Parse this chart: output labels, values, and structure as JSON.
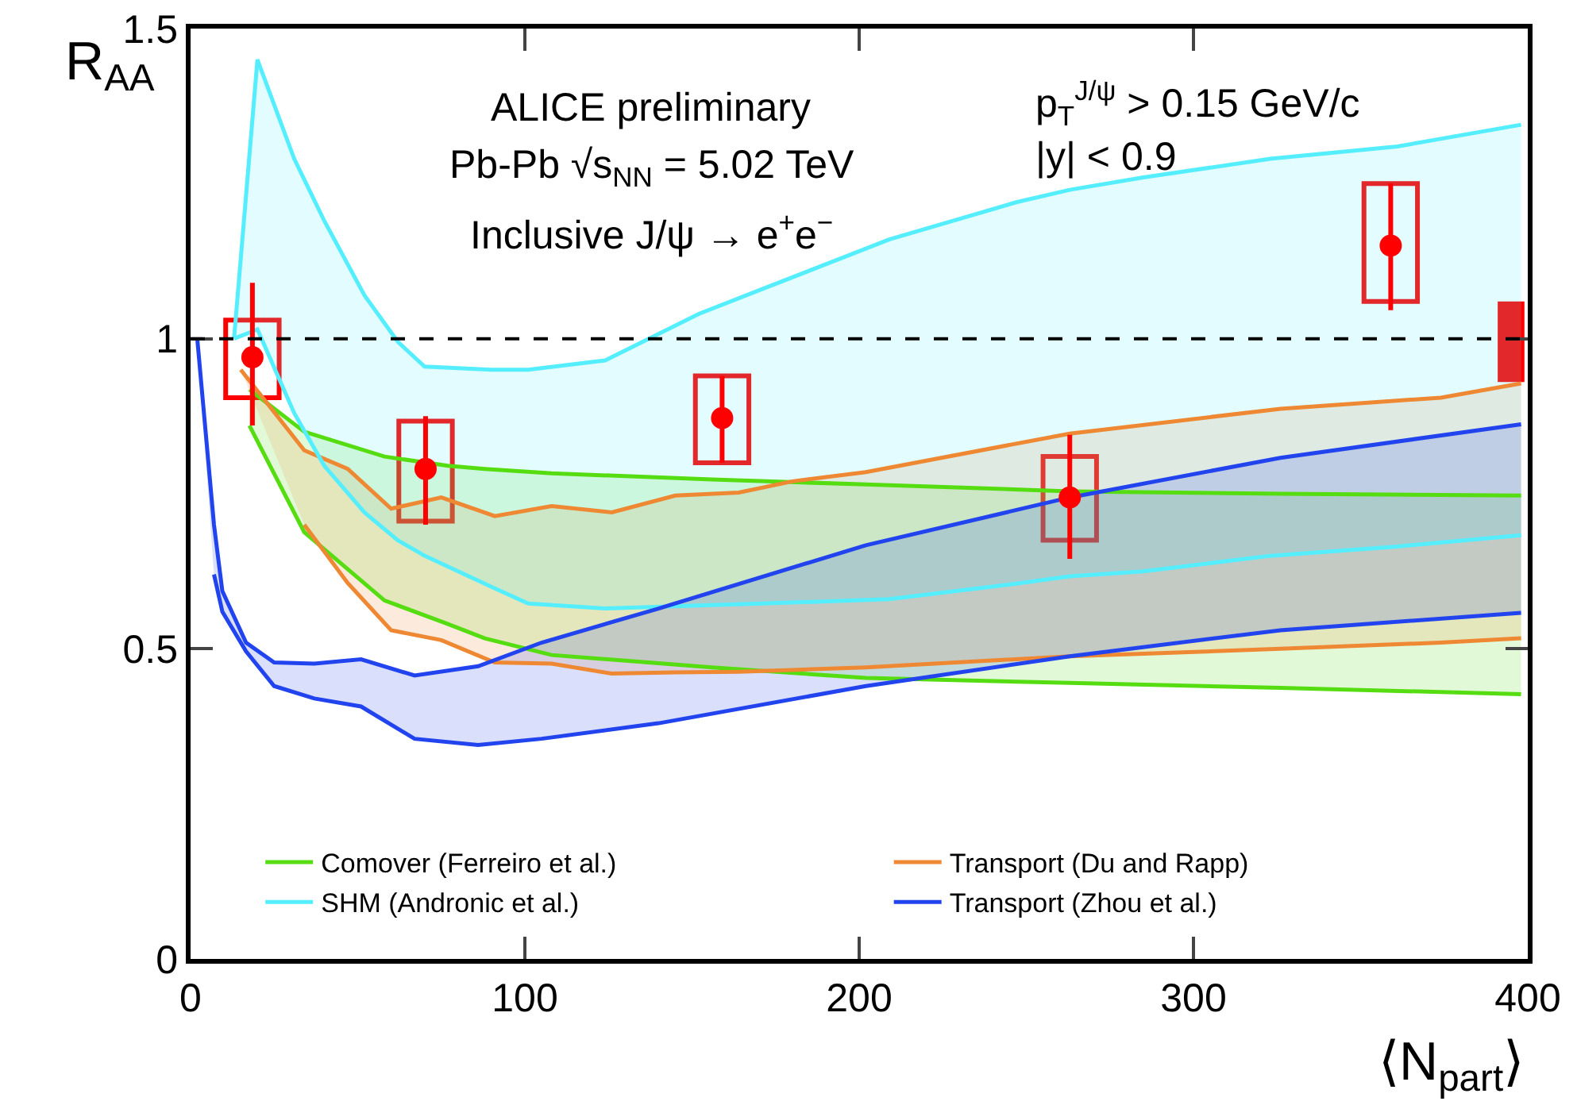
{
  "chart_data": {
    "type": "line",
    "xlabel": "⟨N$_{part}$⟩",
    "ylabel": "R$_{AA}$",
    "annotations": [
      "ALICE preliminary",
      "Pb-Pb √s$_{NN}$ = 5.02 TeV",
      "Inclusive J/ψ → e$^{+}$e$^{−}$",
      "p$_{T}$$^{J/ψ}$ > 0.15 GeV/c",
      "|y| < 0.9"
    ],
    "xlim": [
      0,
      400
    ],
    "ylim": [
      0,
      1.5
    ],
    "xticks": [
      0,
      100,
      200,
      300,
      400
    ],
    "yticks": [
      0,
      0.5,
      1,
      1.5
    ],
    "grid": false,
    "legend": "bottom",
    "ref_lines": [
      {
        "axis": "y",
        "value": 1,
        "color": "#000000",
        "line_style": "dashed"
      }
    ],
    "series": [
      {
        "color": "#55dd11",
        "x": [
          17.6,
          34,
          58,
          77,
          88,
          108,
          156,
          202,
          263,
          326,
          398
        ],
        "values": [
          0.86,
          0.688,
          0.578,
          0.54,
          0.517,
          0.49,
          0.47,
          0.453,
          0.445,
          0.437,
          0.427
        ]
      },
      {
        "type": "area",
        "name": "Comover (Ferreiro et al.)",
        "color": "#55dd11",
        "x": [
          17.6,
          34,
          58,
          77,
          88,
          108,
          156,
          202,
          263,
          326,
          398
        ],
        "values": [
          0.918,
          0.85,
          0.81,
          0.795,
          0.79,
          0.783,
          0.773,
          0.765,
          0.754,
          0.75,
          0.747
        ]
      },
      {
        "color": "#ee8833",
        "x": [
          34,
          47,
          60,
          75,
          91,
          108,
          126,
          145,
          164,
          180,
          202,
          263,
          326,
          374,
          398
        ],
        "values": [
          0.7,
          0.606,
          0.53,
          0.514,
          0.478,
          0.476,
          0.46,
          0.462,
          0.463,
          0.466,
          0.47,
          0.488,
          0.5,
          0.51,
          0.517
        ]
      },
      {
        "type": "area",
        "name": "Transport (Du and Rapp)",
        "color": "#ee8833",
        "x": [
          15,
          34,
          47,
          60,
          75,
          91,
          108,
          126,
          145,
          164,
          180,
          202,
          263,
          326,
          374,
          398
        ],
        "values": [
          0.95,
          0.82,
          0.79,
          0.726,
          0.744,
          0.714,
          0.73,
          0.72,
          0.747,
          0.752,
          0.77,
          0.785,
          0.847,
          0.887,
          0.905,
          0.928
        ]
      },
      {
        "color": "#55eeff",
        "x": [
          13,
          20,
          31,
          40,
          52,
          62,
          70,
          90,
          101,
          124,
          152,
          171,
          209,
          247,
          263,
          285,
          323,
          361,
          398
        ],
        "values": [
          1.0,
          1.015,
          0.88,
          0.795,
          0.72,
          0.675,
          0.65,
          0.6,
          0.573,
          0.565,
          0.57,
          0.573,
          0.58,
          0.605,
          0.617,
          0.625,
          0.65,
          0.665,
          0.683
        ]
      },
      {
        "type": "area",
        "name": "SHM (Andronic et al.)",
        "color": "#55eeff",
        "x": [
          13,
          20,
          31,
          40,
          52,
          62,
          70,
          90,
          101,
          124,
          152,
          171,
          209,
          247,
          263,
          285,
          323,
          361,
          398
        ],
        "values": [
          1.0,
          1.45,
          1.29,
          1.19,
          1.07,
          0.995,
          0.955,
          0.95,
          0.95,
          0.965,
          1.04,
          1.08,
          1.16,
          1.22,
          1.24,
          1.26,
          1.29,
          1.31,
          1.345
        ]
      },
      {
        "color": "#2244ee",
        "x": [
          7,
          9.5,
          16.6,
          25,
          37,
          51,
          67,
          86,
          105,
          140,
          202,
          263,
          326,
          398
        ],
        "values": [
          0.62,
          0.56,
          0.496,
          0.44,
          0.42,
          0.407,
          0.355,
          0.345,
          0.355,
          0.38,
          0.44,
          0.488,
          0.53,
          0.558
        ]
      },
      {
        "type": "area",
        "name": "Transport (Zhou et al.)",
        "color": "#2244ee",
        "x": [
          2,
          7,
          9.5,
          16.6,
          25,
          37,
          51,
          67,
          86,
          105,
          140,
          202,
          263,
          326,
          398
        ],
        "values": [
          1.0,
          0.7,
          0.593,
          0.51,
          0.478,
          0.476,
          0.483,
          0.457,
          0.472,
          0.51,
          0.565,
          0.667,
          0.744,
          0.808,
          0.862
        ]
      },
      {
        "type": "bar",
        "color": "#ff0000",
        "line_style": "solid",
        "x": [
          18.5,
          70.3,
          159,
          263,
          359
        ],
        "base": [
          0.905,
          0.706,
          0.8,
          0.675,
          1.06
        ],
        "values": [
          0.125,
          0.161,
          0.14,
          0.135,
          0.19
        ]
      },
      {
        "type": "bar",
        "color": "#ff0000",
        "x": [
          395
        ],
        "base": [
          0.93
        ],
        "values": [
          0.13
        ]
      },
      {
        "type": "scatter",
        "color": "#ff0000",
        "marker": "circle",
        "x": [
          18.5,
          70.3,
          159,
          263,
          359
        ],
        "values": [
          0.97,
          0.79,
          0.872,
          0.744,
          1.15
        ],
        "errors": [
          [
            0.86,
            1.09
          ],
          [
            0.7,
            0.875
          ],
          [
            0.8,
            0.94
          ],
          [
            0.645,
            0.845
          ],
          [
            1.046,
            1.25
          ]
        ]
      }
    ]
  }
}
